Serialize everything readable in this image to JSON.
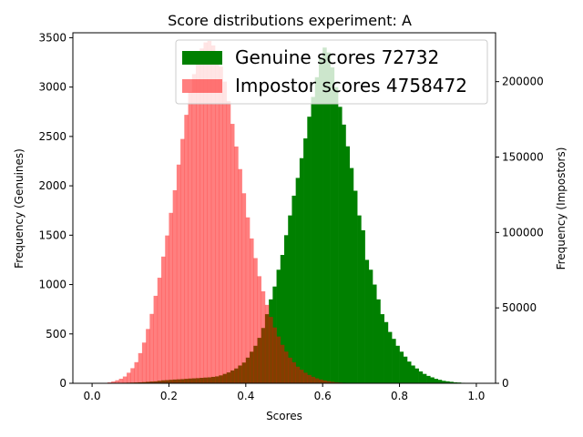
{
  "chart_data": {
    "type": "histogram",
    "title": "Score distributions experiment: A",
    "xlabel": "Scores",
    "ylabel_left": "Frequency (Genuines)",
    "ylabel_right": "Frequency (Impostors)",
    "xlim": [
      -0.05,
      1.05
    ],
    "ylim_left": [
      0,
      3550
    ],
    "ylim_right": [
      0,
      232400
    ],
    "x_ticks": [
      0.0,
      0.2,
      0.4,
      0.6,
      0.8,
      1.0
    ],
    "x_tick_labels": [
      "0.0",
      "0.2",
      "0.4",
      "0.6",
      "0.8",
      "1.0"
    ],
    "y_left_ticks": [
      0,
      500,
      1000,
      1500,
      2000,
      2500,
      3000,
      3500
    ],
    "y_left_tick_labels": [
      "0",
      "500",
      "1000",
      "1500",
      "2000",
      "2500",
      "3000",
      "3500"
    ],
    "y_right_ticks": [
      0,
      50000,
      100000,
      150000,
      200000
    ],
    "y_right_tick_labels": [
      "0",
      "50000",
      "100000",
      "150000",
      "200000"
    ],
    "bin_width": 0.01,
    "legend_position": "top-right",
    "grid": false,
    "series": [
      {
        "name": "Genuine scores 72732",
        "color": "#008000",
        "alpha": 1.0,
        "axis": "left",
        "bin_start": 0.05,
        "values": [
          2,
          3,
          4,
          5,
          6,
          7,
          8,
          10,
          12,
          15,
          18,
          20,
          25,
          30,
          32,
          35,
          38,
          40,
          42,
          45,
          48,
          50,
          52,
          55,
          58,
          60,
          65,
          70,
          80,
          95,
          110,
          130,
          150,
          180,
          210,
          260,
          320,
          380,
          460,
          560,
          700,
          850,
          980,
          1150,
          1300,
          1500,
          1700,
          1900,
          2080,
          2280,
          2480,
          2700,
          2900,
          3100,
          3300,
          3400,
          3350,
          3200,
          3000,
          2800,
          2620,
          2400,
          2180,
          1950,
          1700,
          1550,
          1250,
          1150,
          1000,
          850,
          700,
          620,
          520,
          450,
          380,
          320,
          270,
          220,
          180,
          150,
          120,
          95,
          75,
          60,
          45,
          35,
          25,
          20,
          15,
          10,
          8,
          5,
          3,
          2,
          1
        ]
      },
      {
        "name": "Impostor scores 4758472",
        "color": "#ff0000",
        "alpha": 0.5,
        "axis": "right",
        "bin_start": 0.03,
        "values": [
          300,
          600,
          1200,
          2000,
          3000,
          4500,
          7000,
          10000,
          14000,
          20000,
          27000,
          36000,
          46000,
          58000,
          70000,
          84000,
          98000,
          113000,
          128000,
          145000,
          162000,
          178000,
          193000,
          205000,
          215000,
          222000,
          226000,
          227000,
          224000,
          218000,
          210000,
          200000,
          187000,
          172000,
          157000,
          142000,
          126000,
          110000,
          96000,
          83000,
          71000,
          61000,
          52000,
          44000,
          37000,
          31000,
          25500,
          21000,
          17000,
          14000,
          11000,
          9000,
          7000,
          5500,
          4300,
          3300,
          2500,
          1900,
          1400,
          1000,
          700,
          500,
          350,
          250,
          150,
          100,
          50
        ]
      }
    ]
  }
}
